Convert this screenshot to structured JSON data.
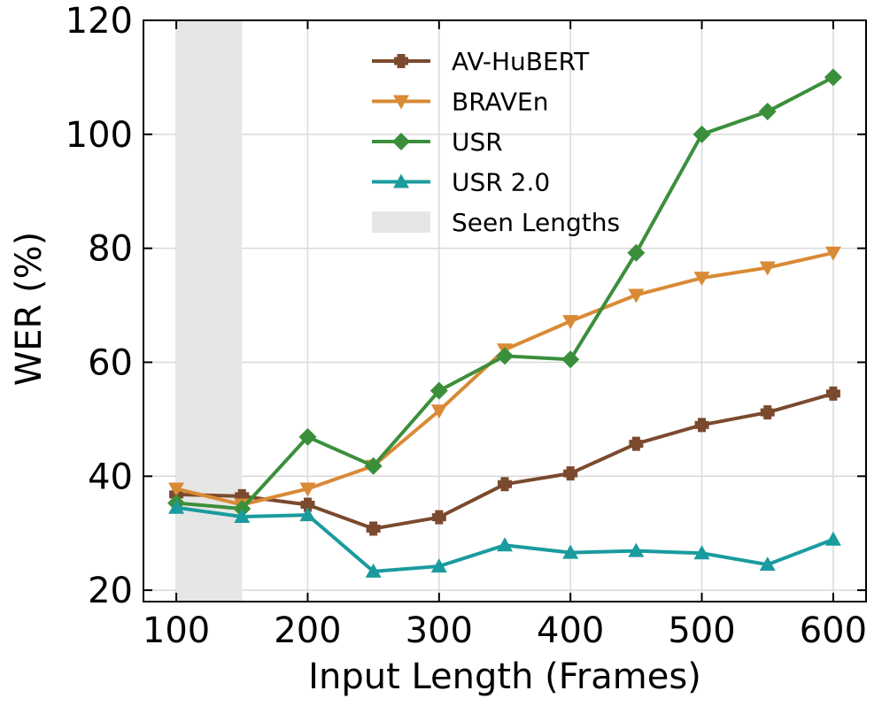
{
  "chart_data": {
    "type": "line",
    "xlabel": "Input Length (Frames)",
    "ylabel": "WER (%)",
    "xlim": [
      75,
      625
    ],
    "ylim": [
      18,
      120
    ],
    "xticks": [
      100,
      200,
      300,
      400,
      500,
      600
    ],
    "yticks": [
      20,
      40,
      60,
      80,
      100,
      120
    ],
    "grid": true,
    "legend_position": "top-center",
    "shaded_region": {
      "label": "Seen Lengths",
      "x_range": [
        100,
        150
      ],
      "color": "#e6e6e6"
    },
    "x": [
      100,
      150,
      200,
      250,
      300,
      350,
      400,
      450,
      500,
      550,
      600
    ],
    "series": [
      {
        "name": "AV-HuBERT",
        "color": "#7b4a2e",
        "marker": "plus",
        "values": [
          36.8,
          36.5,
          35.0,
          30.8,
          32.8,
          38.6,
          40.5,
          45.7,
          49.0,
          51.2,
          54.5
        ]
      },
      {
        "name": "BRAVEn",
        "color": "#d98a35",
        "marker": "triangle-down",
        "values": [
          37.8,
          35.0,
          37.8,
          41.8,
          51.5,
          62.2,
          67.2,
          71.8,
          74.8,
          76.6,
          79.2
        ]
      },
      {
        "name": "USR",
        "color": "#3b8f3b",
        "marker": "diamond",
        "values": [
          35.3,
          34.3,
          46.9,
          41.8,
          55.0,
          61.1,
          60.5,
          79.2,
          100.0,
          104.0,
          110.0
        ]
      },
      {
        "name": "USR 2.0",
        "color": "#1a9b9e",
        "marker": "triangle-up",
        "values": [
          34.5,
          32.9,
          33.2,
          23.3,
          24.2,
          27.9,
          26.6,
          26.9,
          26.5,
          24.5,
          28.9
        ]
      }
    ]
  }
}
